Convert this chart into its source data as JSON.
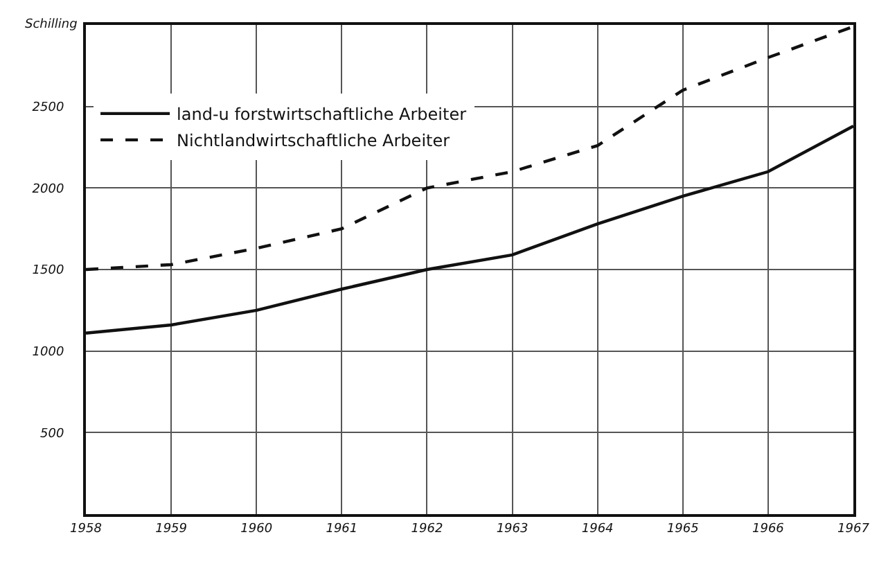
{
  "chart_data": {
    "type": "line",
    "ylabel": "Schilling",
    "x": [
      1958,
      1959,
      1960,
      1961,
      1962,
      1963,
      1964,
      1965,
      1966,
      1967
    ],
    "series": [
      {
        "name": "land-u forstwirtschaftliche Arbeiter",
        "color": "#111111",
        "line_style": "solid",
        "values": [
          1110,
          1160,
          1250,
          1380,
          1500,
          1590,
          1780,
          1950,
          2100,
          2380
        ]
      },
      {
        "name": "Nichtlandwirtschaftliche Arbeiter",
        "color": "#111111",
        "line_style": "dashed",
        "values": [
          1500,
          1530,
          1630,
          1750,
          2000,
          2100,
          2260,
          2600,
          2800,
          2990
        ]
      }
    ],
    "xlim": [
      1958,
      1967
    ],
    "xticks": [
      1958,
      1959,
      1960,
      1961,
      1962,
      1963,
      1964,
      1965,
      1966,
      1967
    ],
    "ylim": [
      0,
      3000
    ],
    "yticks": [
      500,
      1000,
      1500,
      2000,
      2500
    ],
    "grid": true,
    "legend": "top left",
    "marker": "none"
  }
}
